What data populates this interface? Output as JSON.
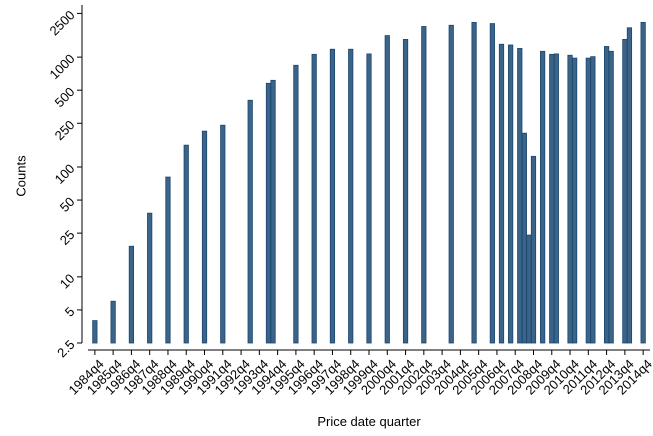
{
  "chart_data": {
    "type": "bar",
    "log_y": true,
    "x_label": "Price date quarter",
    "y_label": "Counts",
    "color": "#3b6488",
    "edge_color": "#1a476f",
    "x": [
      99,
      103,
      107,
      111,
      115,
      119,
      123,
      127,
      133,
      137,
      138,
      143,
      147,
      151,
      155,
      159,
      163,
      167,
      171,
      177,
      182,
      186,
      188,
      190,
      192,
      193,
      194,
      195,
      197,
      199,
      200,
      203,
      204,
      207,
      208,
      211,
      212,
      215,
      216,
      219
    ],
    "values": [
      4,
      6,
      19,
      38,
      81,
      158,
      212,
      240,
      405,
      578,
      615,
      843,
      1060,
      1180,
      1180,
      1070,
      1570,
      1450,
      1900,
      1950,
      2070,
      2020,
      1310,
      1290,
      1200,
      203,
      24,
      125,
      1130,
      1060,
      1070,
      1040,
      980,
      980,
      1010,
      1250,
      1130,
      1450,
      1850,
      2070
    ],
    "xlim": [
      97.5,
      220.5
    ],
    "xticks": [
      {
        "value": 99,
        "label": "1984q4"
      },
      {
        "value": 103,
        "label": "1985q4"
      },
      {
        "value": 107,
        "label": "1986q4"
      },
      {
        "value": 111,
        "label": "1987q4"
      },
      {
        "value": 115,
        "label": "1988q4"
      },
      {
        "value": 119,
        "label": "1989q4"
      },
      {
        "value": 123,
        "label": "1990q4"
      },
      {
        "value": 127,
        "label": "1991q4"
      },
      {
        "value": 131,
        "label": "1992q4"
      },
      {
        "value": 135,
        "label": "1993q4"
      },
      {
        "value": 139,
        "label": "1994q4"
      },
      {
        "value": 143,
        "label": "1995q4"
      },
      {
        "value": 147,
        "label": "1996q4"
      },
      {
        "value": 151,
        "label": "1997q4"
      },
      {
        "value": 155,
        "label": "1998q4"
      },
      {
        "value": 159,
        "label": "1999q4"
      },
      {
        "value": 163,
        "label": "2000q4"
      },
      {
        "value": 167,
        "label": "2001q4"
      },
      {
        "value": 171,
        "label": "2002q4"
      },
      {
        "value": 175,
        "label": "2003q4"
      },
      {
        "value": 179,
        "label": "2004q4"
      },
      {
        "value": 183,
        "label": "2005q4"
      },
      {
        "value": 187,
        "label": "2006q4"
      },
      {
        "value": 191,
        "label": "2007q4"
      },
      {
        "value": 195,
        "label": "2008q4"
      },
      {
        "value": 199,
        "label": "2009q4"
      },
      {
        "value": 203,
        "label": "2010q4"
      },
      {
        "value": 207,
        "label": "2011q4"
      },
      {
        "value": 211,
        "label": "2012q4"
      },
      {
        "value": 215,
        "label": "2013q4"
      },
      {
        "value": 219,
        "label": "2014q4"
      }
    ],
    "ylim": [
      2.5,
      2800
    ],
    "yticks": [
      2.5,
      5,
      10,
      25,
      50,
      100,
      250,
      500,
      1000,
      2500
    ]
  }
}
